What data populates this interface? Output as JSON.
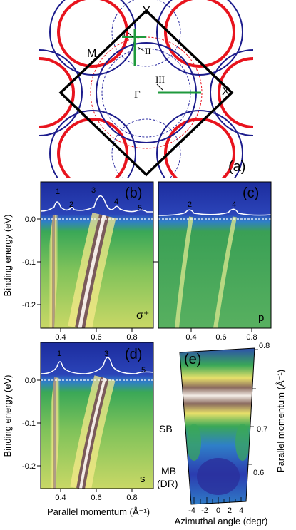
{
  "figure": {
    "panel_a": {
      "panel_label": "(a)",
      "points": {
        "Y": "Y",
        "M": "M",
        "X": "X",
        "Gamma": "Γ"
      },
      "cuts": {
        "I": "I",
        "II": "II",
        "III": "III"
      },
      "colors": {
        "fermi_red": "#e8141e",
        "fermi_blue": "#1c1c8c",
        "bz": "#000000",
        "cut": "#1f9a3c",
        "dashed_red": "#e8141e",
        "dashed_blue": "#2a2aa0"
      }
    },
    "panel_b": {
      "panel_label": "(b)",
      "polarization": "σ⁺",
      "peaks": [
        "1",
        "2",
        "3",
        "4",
        "5"
      ]
    },
    "panel_c": {
      "panel_label": "(c)",
      "polarization": "p",
      "peaks": [
        "2",
        "4"
      ]
    },
    "panel_d": {
      "panel_label": "(d)",
      "polarization": "s",
      "peaks": [
        "1",
        "3",
        "5"
      ]
    },
    "panel_e": {
      "panel_label": "(e)",
      "labels": {
        "sb": "SB",
        "mb1": "MB",
        "mb2": "(DR)"
      },
      "y_axis_label": "Parallel momentum (Å⁻¹)",
      "y_ticks": [
        "0.8",
        "0.7",
        "0.6"
      ],
      "x_axis_label": "Azimuthal angle (degr)",
      "x_ticks": [
        "-4",
        "-2",
        "0",
        "2",
        "4"
      ]
    },
    "axes": {
      "y_label": "Binding energy (eV)",
      "y_ticks": [
        "0.0",
        "-0.1",
        "-0.2"
      ],
      "x_label": "Parallel momentum (Å⁻¹)",
      "x_ticks": [
        "0.4",
        "0.6",
        "0.8"
      ]
    },
    "colormap": {
      "top": "#1a2a9a",
      "mid": "#2f9a4a",
      "low": "#c9d866",
      "high": "#f5e98a",
      "peak": "#7a5a5a",
      "peak_core": "#f3ece6"
    }
  }
}
